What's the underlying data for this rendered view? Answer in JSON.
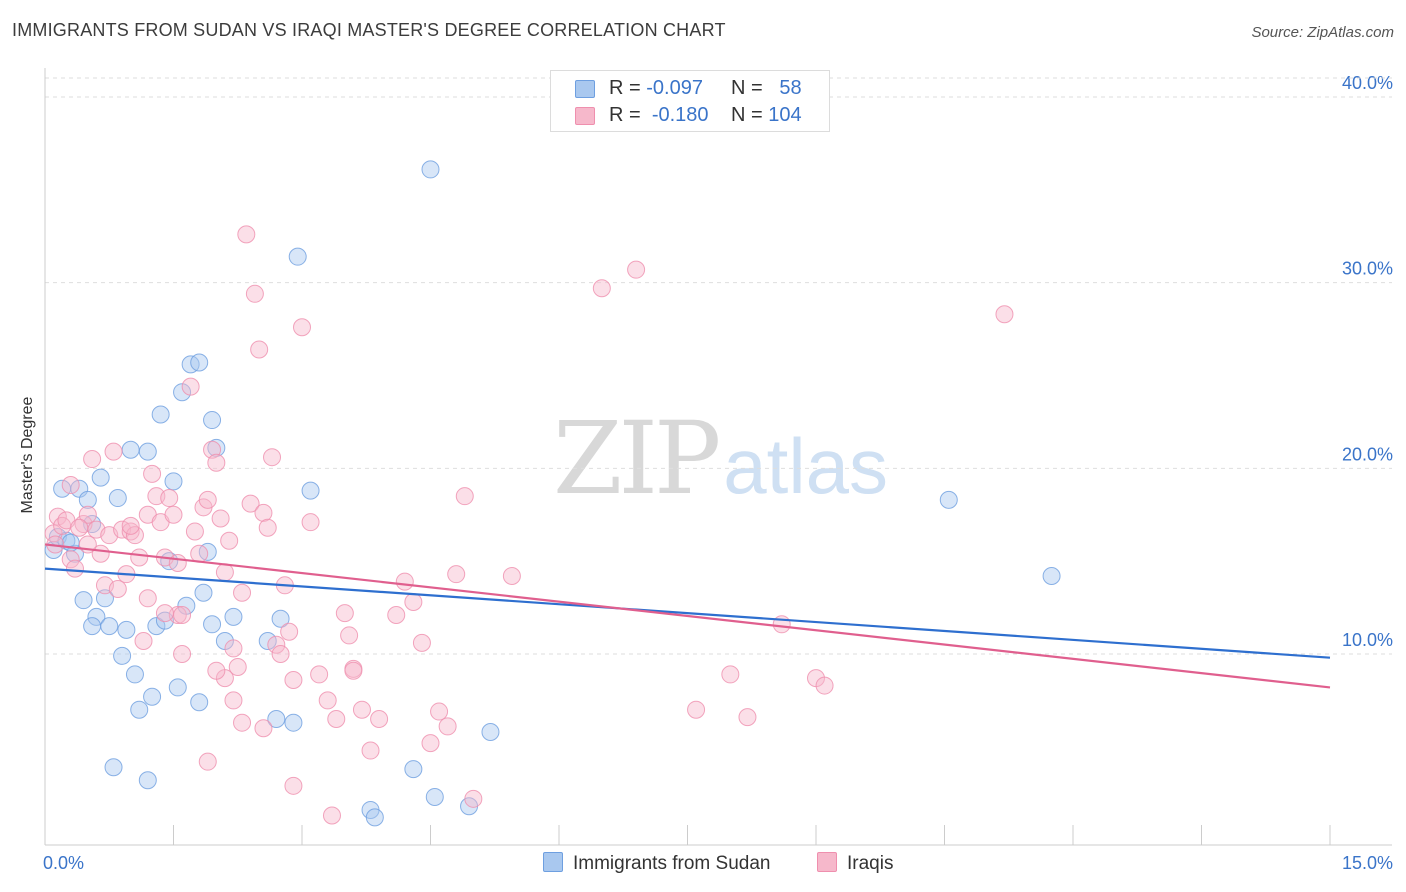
{
  "title": "IMMIGRANTS FROM SUDAN VS IRAQI MASTER'S DEGREE CORRELATION CHART",
  "source": "Source: ZipAtlas.com",
  "watermark": {
    "zip": "ZIP",
    "atlas": "atlas"
  },
  "legend_top": [
    {
      "r_label": "R =",
      "r_value": "-0.097",
      "n_label": "N =",
      "n_value": "58",
      "color": "#a9c8ef"
    },
    {
      "r_label": "R =",
      "r_value": "-0.180",
      "n_label": "N =",
      "n_value": "104",
      "color": "#f6b8cb"
    }
  ],
  "legend_bottom": [
    {
      "label": "Immigrants from Sudan",
      "color": "#a9c8ef"
    },
    {
      "label": "Iraqis",
      "color": "#f6b8cb"
    }
  ],
  "chart_data": {
    "type": "scatter",
    "ylabel": "Master's Degree",
    "xlim": [
      0,
      15
    ],
    "ylim": [
      0,
      40
    ],
    "x_tick_labels": [
      "0.0%",
      "15.0%"
    ],
    "y_ticks": [
      10,
      20,
      30,
      40
    ],
    "y_tick_labels": [
      "10.0%",
      "20.0%",
      "30.0%",
      "40.0%"
    ],
    "grid": true,
    "series": [
      {
        "name": "Immigrants from Sudan",
        "color": "#6e9fe0",
        "fill": "#a9c8ef",
        "trend": {
          "x": [
            0,
            15
          ],
          "y": [
            14.6,
            9.8
          ],
          "color": "#2e6fcf"
        },
        "points": [
          [
            0.1,
            15.6
          ],
          [
            0.15,
            16.3
          ],
          [
            0.25,
            16.1
          ],
          [
            0.35,
            15.4
          ],
          [
            0.2,
            18.9
          ],
          [
            0.4,
            18.9
          ],
          [
            0.5,
            18.3
          ],
          [
            0.65,
            19.5
          ],
          [
            0.85,
            18.4
          ],
          [
            0.55,
            17.0
          ],
          [
            0.45,
            12.9
          ],
          [
            0.6,
            12.0
          ],
          [
            0.55,
            11.5
          ],
          [
            0.75,
            11.5
          ],
          [
            0.95,
            11.3
          ],
          [
            0.7,
            13.0
          ],
          [
            0.9,
            9.9
          ],
          [
            1.05,
            8.9
          ],
          [
            1.3,
            11.5
          ],
          [
            1.4,
            11.8
          ],
          [
            1.25,
            7.7
          ],
          [
            1.1,
            7.0
          ],
          [
            0.8,
            3.9
          ],
          [
            1.2,
            3.2
          ],
          [
            1.0,
            21.0
          ],
          [
            1.2,
            20.9
          ],
          [
            1.35,
            22.9
          ],
          [
            1.5,
            19.3
          ],
          [
            1.6,
            24.1
          ],
          [
            1.7,
            25.6
          ],
          [
            1.8,
            25.7
          ],
          [
            1.95,
            22.6
          ],
          [
            2.0,
            21.1
          ],
          [
            1.9,
            15.5
          ],
          [
            1.45,
            15.0
          ],
          [
            1.85,
            13.3
          ],
          [
            1.65,
            12.6
          ],
          [
            1.95,
            11.6
          ],
          [
            2.1,
            10.7
          ],
          [
            2.2,
            12.0
          ],
          [
            1.55,
            8.2
          ],
          [
            1.8,
            7.4
          ],
          [
            2.6,
            10.7
          ],
          [
            2.75,
            11.9
          ],
          [
            2.7,
            6.5
          ],
          [
            2.9,
            6.3
          ],
          [
            3.1,
            18.8
          ],
          [
            2.95,
            31.4
          ],
          [
            4.5,
            36.1
          ],
          [
            4.3,
            3.8
          ],
          [
            4.55,
            2.3
          ],
          [
            4.95,
            1.8
          ],
          [
            5.2,
            5.8
          ],
          [
            3.8,
            1.6
          ],
          [
            3.85,
            1.2
          ],
          [
            10.55,
            18.3
          ],
          [
            11.75,
            14.2
          ],
          [
            0.3,
            16.0
          ]
        ]
      },
      {
        "name": "Iraqis",
        "color": "#ef8fae",
        "fill": "#f6b8cb",
        "trend": {
          "x": [
            0,
            15
          ],
          "y": [
            15.9,
            8.2
          ],
          "color": "#e05f8e"
        },
        "points": [
          [
            0.1,
            16.5
          ],
          [
            0.12,
            15.9
          ],
          [
            0.15,
            17.4
          ],
          [
            0.2,
            16.9
          ],
          [
            0.25,
            17.2
          ],
          [
            0.3,
            15.1
          ],
          [
            0.35,
            14.6
          ],
          [
            0.3,
            19.1
          ],
          [
            0.45,
            17.0
          ],
          [
            0.5,
            17.5
          ],
          [
            0.55,
            20.5
          ],
          [
            0.6,
            16.7
          ],
          [
            0.65,
            15.4
          ],
          [
            0.7,
            13.7
          ],
          [
            0.75,
            16.4
          ],
          [
            0.8,
            20.9
          ],
          [
            0.85,
            13.5
          ],
          [
            0.9,
            16.7
          ],
          [
            0.95,
            14.3
          ],
          [
            1.0,
            16.6
          ],
          [
            1.05,
            16.4
          ],
          [
            1.1,
            15.2
          ],
          [
            1.15,
            10.7
          ],
          [
            1.2,
            17.5
          ],
          [
            1.25,
            19.7
          ],
          [
            1.3,
            18.5
          ],
          [
            1.35,
            17.1
          ],
          [
            1.4,
            15.2
          ],
          [
            1.45,
            18.4
          ],
          [
            1.5,
            17.5
          ],
          [
            1.55,
            14.9
          ],
          [
            1.55,
            12.1
          ],
          [
            1.6,
            12.1
          ],
          [
            1.7,
            24.4
          ],
          [
            1.75,
            16.6
          ],
          [
            1.8,
            15.4
          ],
          [
            1.85,
            17.9
          ],
          [
            1.9,
            18.3
          ],
          [
            1.95,
            21.0
          ],
          [
            2.0,
            20.3
          ],
          [
            2.05,
            17.3
          ],
          [
            2.1,
            14.4
          ],
          [
            2.15,
            16.1
          ],
          [
            2.2,
            10.3
          ],
          [
            2.25,
            9.3
          ],
          [
            2.3,
            13.3
          ],
          [
            2.35,
            32.6
          ],
          [
            2.4,
            18.1
          ],
          [
            2.45,
            29.4
          ],
          [
            2.5,
            26.4
          ],
          [
            2.55,
            17.6
          ],
          [
            2.6,
            16.8
          ],
          [
            2.65,
            20.6
          ],
          [
            2.7,
            10.5
          ],
          [
            2.75,
            10.0
          ],
          [
            2.8,
            13.7
          ],
          [
            2.85,
            11.2
          ],
          [
            2.9,
            8.6
          ],
          [
            3.0,
            27.6
          ],
          [
            3.1,
            17.1
          ],
          [
            3.2,
            8.9
          ],
          [
            3.3,
            7.5
          ],
          [
            3.4,
            6.5
          ],
          [
            3.5,
            12.2
          ],
          [
            3.55,
            11.0
          ],
          [
            3.6,
            9.2
          ],
          [
            3.7,
            7.0
          ],
          [
            3.8,
            4.8
          ],
          [
            3.9,
            6.5
          ],
          [
            4.1,
            12.1
          ],
          [
            4.2,
            13.9
          ],
          [
            4.3,
            12.8
          ],
          [
            4.4,
            10.6
          ],
          [
            4.5,
            5.2
          ],
          [
            4.6,
            6.9
          ],
          [
            4.7,
            6.1
          ],
          [
            4.8,
            14.3
          ],
          [
            4.9,
            18.5
          ],
          [
            5.0,
            2.2
          ],
          [
            5.45,
            14.2
          ],
          [
            6.5,
            29.7
          ],
          [
            6.9,
            30.7
          ],
          [
            7.6,
            7.0
          ],
          [
            8.0,
            8.9
          ],
          [
            8.2,
            6.6
          ],
          [
            8.6,
            11.6
          ],
          [
            9.0,
            8.7
          ],
          [
            9.1,
            8.3
          ],
          [
            11.2,
            28.3
          ],
          [
            1.9,
            4.2
          ],
          [
            2.1,
            8.7
          ],
          [
            2.2,
            7.5
          ],
          [
            2.3,
            6.3
          ],
          [
            2.55,
            6.0
          ],
          [
            2.9,
            2.9
          ],
          [
            3.35,
            1.3
          ],
          [
            3.6,
            9.1
          ],
          [
            1.6,
            10.0
          ],
          [
            1.4,
            12.2
          ],
          [
            1.2,
            13.0
          ],
          [
            0.4,
            16.8
          ],
          [
            1.0,
            16.9
          ],
          [
            2.0,
            9.1
          ],
          [
            0.5,
            15.9
          ]
        ]
      }
    ]
  }
}
